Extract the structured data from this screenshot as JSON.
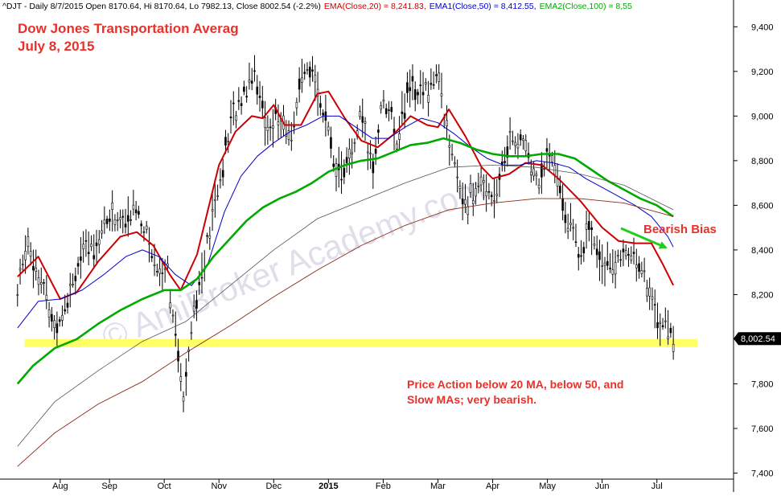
{
  "header": {
    "title_segment": "^DJT - Daily 8/7/2015 Open 8170.64, Hi 8170.64, Lo 7982.13, Close 8002.54 (-2.2%)",
    "ema20_segment": "EMA(Close,20) = 8,241.83,",
    "ema50_segment": "EMA1(Close,50) = 8,412.55,",
    "ema100_segment": "EMA2(Close,100) = 8,55",
    "colors": {
      "title": "#000000",
      "ema20": "#cc0000",
      "ema50": "#0000cc",
      "ema100": "#00aa00"
    }
  },
  "overlay": {
    "title_line1": "Dow Jones Transportation Averag",
    "title_line2": "July 8, 2015",
    "bearish_label": "Bearish Bias",
    "commentary_line1": "Price Action below 20 MA, below 50, and",
    "commentary_line2": "Slow MAs; very bearish.",
    "watermark": "© AmiBroker Academy.com",
    "label_color": "#e8312a",
    "arrow_color": "#22cc22",
    "support_color": "#ffff66"
  },
  "chart_data": {
    "type": "line",
    "title": "",
    "xlabel": "",
    "ylabel": "",
    "y_axis_side": "right",
    "ylim": [
      7380,
      9500
    ],
    "y_ticks": [
      "7,400",
      "7,600",
      "7,800",
      "8,000",
      "8,200",
      "8,400",
      "8,600",
      "8,800",
      "9,000",
      "9,200",
      "9,400"
    ],
    "y_tick_values": [
      7400,
      7600,
      7800,
      8000,
      8200,
      8400,
      8600,
      8800,
      9000,
      9200,
      9400
    ],
    "x_labels": [
      "Aug",
      "Sep",
      "Oct",
      "Nov",
      "Dec",
      "2015",
      "Feb",
      "Mar",
      "Apr",
      "May",
      "Jun",
      "Jul"
    ],
    "x_label_months": [
      7.1,
      8.0,
      9.0,
      10.0,
      11.0,
      12.0,
      13.0,
      14.0,
      15.0,
      16.0,
      17.0,
      18.0
    ],
    "xlim_months": [
      6.0,
      19.4
    ],
    "last_value_label": "8,002.54",
    "last_value": 8002.54,
    "support_level": 7983,
    "support_range_months": [
      6.45,
      18.74
    ],
    "grid": false,
    "series": [
      {
        "name": "EMA(Close,20)",
        "color": "#cc0000",
        "x": [
          6.32,
          6.7,
          7.1,
          7.4,
          7.8,
          8.2,
          8.5,
          8.8,
          9.1,
          9.3,
          9.6,
          10.0,
          10.3,
          10.6,
          10.8,
          11.0,
          11.2,
          11.5,
          11.8,
          12.0,
          12.3,
          12.6,
          12.9,
          13.2,
          13.5,
          13.8,
          14.0,
          14.2,
          14.5,
          14.8,
          15.0,
          15.3,
          15.6,
          15.9,
          16.2,
          16.6,
          17.0,
          17.3,
          17.6,
          17.9,
          18.1,
          18.3
        ],
        "y": [
          8280,
          8370,
          8180,
          8210,
          8350,
          8460,
          8480,
          8420,
          8290,
          8220,
          8380,
          8780,
          8930,
          9000,
          8990,
          9050,
          8960,
          8960,
          9100,
          9110,
          8990,
          8890,
          8860,
          8920,
          9000,
          8960,
          8950,
          9030,
          8910,
          8770,
          8720,
          8740,
          8790,
          8780,
          8720,
          8620,
          8500,
          8440,
          8430,
          8430,
          8340,
          8242
        ]
      },
      {
        "name": "EMA1(Close,50)",
        "color": "#0000cc",
        "x": [
          6.32,
          6.7,
          7.1,
          7.5,
          7.9,
          8.3,
          8.6,
          8.9,
          9.2,
          9.5,
          9.8,
          10.1,
          10.4,
          10.7,
          11.0,
          11.3,
          11.6,
          11.9,
          12.2,
          12.5,
          12.8,
          13.1,
          13.4,
          13.7,
          14.0,
          14.3,
          14.6,
          14.9,
          15.2,
          15.5,
          15.8,
          16.1,
          16.4,
          16.7,
          17.0,
          17.3,
          17.6,
          17.9,
          18.2,
          18.3
        ],
        "y": [
          8050,
          8170,
          8180,
          8220,
          8290,
          8370,
          8400,
          8370,
          8290,
          8240,
          8340,
          8570,
          8730,
          8820,
          8880,
          8930,
          8960,
          9000,
          9000,
          8950,
          8900,
          8900,
          8950,
          8990,
          8970,
          8920,
          8860,
          8810,
          8780,
          8780,
          8800,
          8790,
          8770,
          8720,
          8680,
          8640,
          8600,
          8550,
          8460,
          8413
        ]
      },
      {
        "name": "EMA2(Close,100)",
        "color": "#00aa00",
        "x": [
          6.32,
          6.6,
          7.0,
          7.4,
          7.8,
          8.2,
          8.6,
          9.0,
          9.3,
          9.6,
          9.9,
          10.2,
          10.5,
          10.8,
          11.1,
          11.4,
          11.7,
          12.0,
          12.3,
          12.6,
          12.9,
          13.2,
          13.5,
          13.8,
          14.1,
          14.4,
          14.7,
          15.0,
          15.3,
          15.6,
          15.9,
          16.2,
          16.5,
          16.8,
          17.1,
          17.4,
          17.7,
          18.0,
          18.3
        ],
        "y": [
          7800,
          7880,
          7960,
          8000,
          8070,
          8130,
          8180,
          8220,
          8220,
          8270,
          8370,
          8450,
          8530,
          8590,
          8630,
          8660,
          8700,
          8750,
          8780,
          8800,
          8810,
          8840,
          8870,
          8880,
          8900,
          8880,
          8850,
          8830,
          8820,
          8820,
          8830,
          8830,
          8810,
          8760,
          8710,
          8670,
          8630,
          8600,
          8550
        ]
      },
      {
        "name": "",
        "color": "#555555",
        "x": [
          6.32,
          7.0,
          7.8,
          8.6,
          9.4,
          10.2,
          11.0,
          11.8,
          12.6,
          13.4,
          14.2,
          15.0,
          15.8,
          16.6,
          17.4,
          18.3
        ],
        "y": [
          7520,
          7720,
          7860,
          7990,
          8080,
          8240,
          8400,
          8540,
          8620,
          8700,
          8770,
          8780,
          8770,
          8740,
          8690,
          8580
        ]
      },
      {
        "name": "",
        "color": "#8b2a1a",
        "x": [
          6.32,
          7.0,
          7.8,
          8.6,
          9.4,
          10.2,
          11.0,
          11.8,
          12.6,
          13.4,
          14.2,
          15.0,
          15.8,
          16.6,
          17.4,
          18.3
        ],
        "y": [
          7430,
          7580,
          7710,
          7810,
          7940,
          8060,
          8190,
          8310,
          8420,
          8510,
          8580,
          8610,
          8630,
          8630,
          8610,
          8550
        ]
      }
    ],
    "price_path": {
      "x": [
        6.32,
        6.5,
        6.75,
        7.0,
        7.2,
        7.45,
        7.7,
        8.0,
        8.3,
        8.5,
        8.7,
        8.9,
        9.05,
        9.2,
        9.35,
        9.5,
        9.7,
        10.0,
        10.25,
        10.45,
        10.65,
        10.85,
        11.05,
        11.3,
        11.5,
        11.75,
        12.0,
        12.2,
        12.4,
        12.6,
        12.8,
        13.0,
        13.25,
        13.5,
        13.75,
        14.0,
        14.15,
        14.35,
        14.55,
        14.8,
        15.05,
        15.3,
        15.55,
        15.8,
        16.05,
        16.3,
        16.55,
        16.8,
        17.05,
        17.3,
        17.55,
        17.8,
        18.0,
        18.15,
        18.3
      ],
      "y": [
        8200,
        8450,
        8260,
        8050,
        8180,
        8350,
        8420,
        8560,
        8520,
        8600,
        8450,
        8300,
        8350,
        8000,
        7750,
        8100,
        8300,
        8700,
        9000,
        9100,
        9230,
        8950,
        9000,
        8900,
        9150,
        9200,
        8900,
        8750,
        8800,
        9000,
        8750,
        9100,
        8900,
        9150,
        9100,
        9200,
        8950,
        8700,
        8620,
        8700,
        8650,
        8900,
        8880,
        8700,
        8820,
        8600,
        8400,
        8480,
        8350,
        8330,
        8400,
        8260,
        8100,
        8060,
        8002
      ]
    }
  }
}
